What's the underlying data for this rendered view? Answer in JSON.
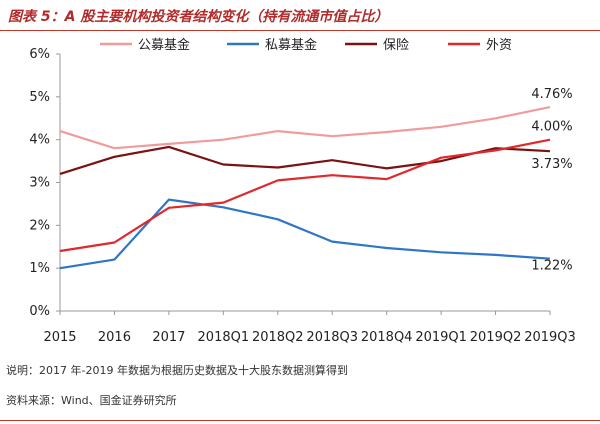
{
  "figure": {
    "title": "图表 5：A 股主要机构投资者结构变化（持有流通市值占比）",
    "note": "说明：2017 年-2019 年数据为根据历史数据及十大股东数据测算得到",
    "source": "资料来源：Wind、国金证券研究所"
  },
  "chart_data": {
    "type": "line",
    "categories": [
      "2015",
      "2016",
      "2017",
      "2018Q1",
      "2018Q2",
      "2018Q3",
      "2018Q4",
      "2019Q1",
      "2019Q2",
      "2019Q3"
    ],
    "ylim": [
      0,
      6
    ],
    "yticks": [
      "0%",
      "1%",
      "2%",
      "3%",
      "4%",
      "5%",
      "6%"
    ],
    "grid": false,
    "legend_position": "top",
    "series": [
      {
        "name": "公募基金",
        "color": "#f09c9c",
        "values": [
          4.2,
          3.8,
          3.9,
          4.0,
          4.2,
          4.08,
          4.18,
          4.3,
          4.5,
          4.76
        ],
        "end_label": "4.76%"
      },
      {
        "name": "私募基金",
        "color": "#2f76c7",
        "values": [
          1.0,
          1.2,
          2.6,
          2.42,
          2.14,
          1.62,
          1.47,
          1.37,
          1.31,
          1.22
        ],
        "end_label": "1.22%"
      },
      {
        "name": "保险",
        "color": "#7a1212",
        "values": [
          3.2,
          3.6,
          3.83,
          3.42,
          3.35,
          3.52,
          3.33,
          3.5,
          3.8,
          3.73
        ],
        "end_label": "3.73%"
      },
      {
        "name": "外资",
        "color": "#e0282d",
        "values": [
          1.4,
          1.6,
          2.41,
          2.53,
          3.05,
          3.17,
          3.08,
          3.58,
          3.75,
          4.0
        ],
        "end_label": "4.00%"
      }
    ]
  }
}
